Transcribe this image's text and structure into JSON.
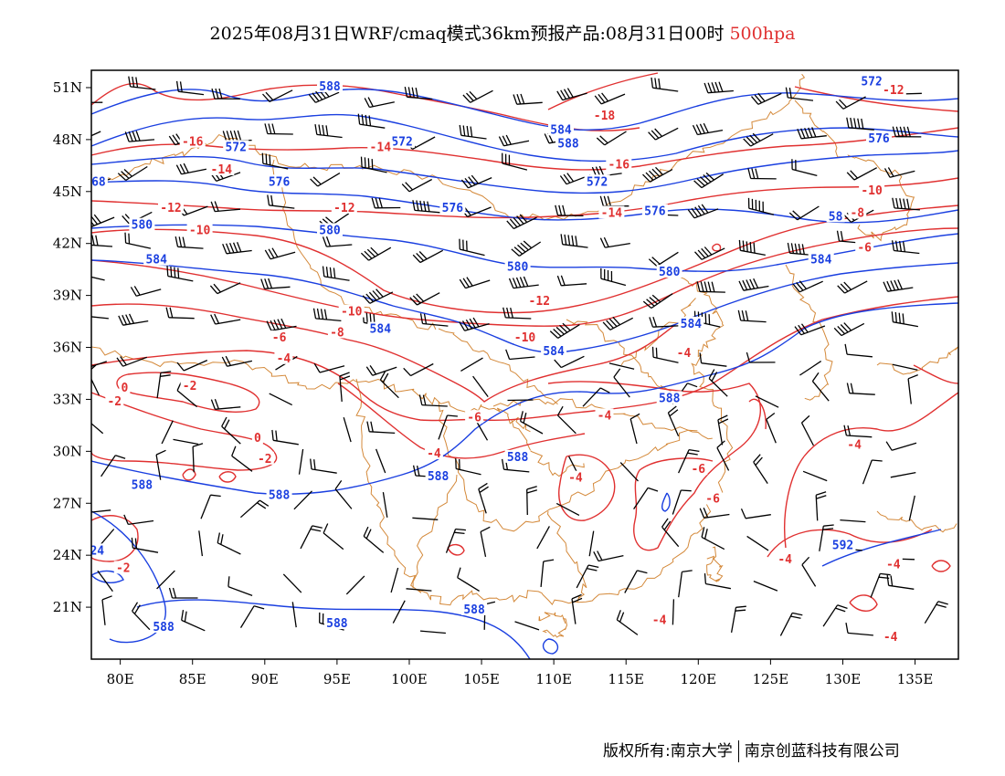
{
  "title": {
    "main": "2025年08月31日WRF/cmaq模式36km预报产品:08月31日00时",
    "level": "500hpa"
  },
  "map": {
    "lon_range": [
      78,
      138
    ],
    "lat_range": [
      18,
      52
    ],
    "lat_ticks": [
      "51N",
      "48N",
      "45N",
      "42N",
      "39N",
      "36N",
      "33N",
      "30N",
      "27N",
      "24N",
      "21N"
    ],
    "lat_tick_values": [
      51,
      48,
      45,
      42,
      39,
      36,
      33,
      30,
      27,
      24,
      21
    ],
    "lon_ticks": [
      "80E",
      "85E",
      "90E",
      "95E",
      "100E",
      "105E",
      "110E",
      "115E",
      "120E",
      "125E",
      "130E",
      "135E"
    ],
    "lon_tick_values": [
      80,
      85,
      90,
      95,
      100,
      105,
      110,
      115,
      120,
      125,
      130,
      135
    ]
  },
  "colors": {
    "height_contour": "#1a3fe0",
    "temperature_contour": "#e03030",
    "boundary": "#d4893a",
    "wind_barb": "#000000",
    "frame": "#000000"
  },
  "height_labels": [
    {
      "text": "588",
      "lon": 94.5,
      "lat": 51
    },
    {
      "text": "584",
      "lon": 110.5,
      "lat": 48.5
    },
    {
      "text": "588",
      "lon": 111,
      "lat": 47.7
    },
    {
      "text": "572",
      "lon": 132,
      "lat": 51.3
    },
    {
      "text": "576",
      "lon": 132.5,
      "lat": 48
    },
    {
      "text": "572",
      "lon": 88,
      "lat": 47.5
    },
    {
      "text": "572",
      "lon": 99.5,
      "lat": 47.8
    },
    {
      "text": "576",
      "lon": 91,
      "lat": 45.5
    },
    {
      "text": "576",
      "lon": 103,
      "lat": 44
    },
    {
      "text": "572",
      "lon": 113,
      "lat": 45.5
    },
    {
      "text": "576",
      "lon": 117,
      "lat": 43.8
    },
    {
      "text": "68",
      "lon": 78.5,
      "lat": 45.5
    },
    {
      "text": "580",
      "lon": 81.5,
      "lat": 43
    },
    {
      "text": "580",
      "lon": 94.5,
      "lat": 42.7
    },
    {
      "text": "584",
      "lon": 82.5,
      "lat": 41
    },
    {
      "text": "580",
      "lon": 107.5,
      "lat": 40.6
    },
    {
      "text": "580",
      "lon": 118,
      "lat": 40.3
    },
    {
      "text": "58",
      "lon": 129.5,
      "lat": 43.5
    },
    {
      "text": "584",
      "lon": 128.5,
      "lat": 41
    },
    {
      "text": "584",
      "lon": 98,
      "lat": 37
    },
    {
      "text": "584",
      "lon": 119.5,
      "lat": 37.3
    },
    {
      "text": "584",
      "lon": 110,
      "lat": 35.7
    },
    {
      "text": "588",
      "lon": 118,
      "lat": 33
    },
    {
      "text": "588",
      "lon": 107.5,
      "lat": 29.6
    },
    {
      "text": "588",
      "lon": 81.5,
      "lat": 28
    },
    {
      "text": "588",
      "lon": 102,
      "lat": 28.5
    },
    {
      "text": "588",
      "lon": 91,
      "lat": 27.4
    },
    {
      "text": "24",
      "lon": 78.4,
      "lat": 24.2
    },
    {
      "text": "592",
      "lon": 130,
      "lat": 24.5
    },
    {
      "text": "588",
      "lon": 104.5,
      "lat": 20.8
    },
    {
      "text": "588",
      "lon": 95,
      "lat": 20
    },
    {
      "text": "588",
      "lon": 83,
      "lat": 19.8
    }
  ],
  "temperature_labels": [
    {
      "text": "-18",
      "lon": 113.5,
      "lat": 49.3
    },
    {
      "text": "-12",
      "lon": 133.5,
      "lat": 50.8
    },
    {
      "text": "-16",
      "lon": 85,
      "lat": 47.8
    },
    {
      "text": "-14",
      "lon": 98,
      "lat": 47.5
    },
    {
      "text": "-16",
      "lon": 114.5,
      "lat": 46.5
    },
    {
      "text": "-14",
      "lon": 87,
      "lat": 46.2
    },
    {
      "text": "-12",
      "lon": 83.5,
      "lat": 44
    },
    {
      "text": "-12",
      "lon": 95.5,
      "lat": 44
    },
    {
      "text": "-14",
      "lon": 114,
      "lat": 43.7
    },
    {
      "text": "-10",
      "lon": 132,
      "lat": 45
    },
    {
      "text": "-8",
      "lon": 131,
      "lat": 43.7
    },
    {
      "text": "-10",
      "lon": 85.5,
      "lat": 42.7
    },
    {
      "text": "-6",
      "lon": 131.5,
      "lat": 41.7
    },
    {
      "text": "-12",
      "lon": 109,
      "lat": 38.6
    },
    {
      "text": "-10",
      "lon": 96,
      "lat": 38
    },
    {
      "text": "-8",
      "lon": 95,
      "lat": 36.8
    },
    {
      "text": "-10",
      "lon": 108,
      "lat": 36.5
    },
    {
      "text": "-6",
      "lon": 91,
      "lat": 36.5
    },
    {
      "text": "-4",
      "lon": 91.3,
      "lat": 35.3
    },
    {
      "text": "-4",
      "lon": 119,
      "lat": 35.6
    },
    {
      "text": "-2",
      "lon": 84.8,
      "lat": 33.7
    },
    {
      "text": "0",
      "lon": 80.3,
      "lat": 33.6
    },
    {
      "text": "-2",
      "lon": 79.6,
      "lat": 32.8
    },
    {
      "text": "-4",
      "lon": 113.5,
      "lat": 32
    },
    {
      "text": "-6",
      "lon": 104.5,
      "lat": 31.9
    },
    {
      "text": "0",
      "lon": 89.5,
      "lat": 30.7
    },
    {
      "text": "-2",
      "lon": 90,
      "lat": 29.5
    },
    {
      "text": "-4",
      "lon": 101.7,
      "lat": 29.8
    },
    {
      "text": "-4",
      "lon": 130.8,
      "lat": 30.3
    },
    {
      "text": "-6",
      "lon": 120,
      "lat": 28.9
    },
    {
      "text": "-4",
      "lon": 111.5,
      "lat": 28.4
    },
    {
      "text": "-6",
      "lon": 121,
      "lat": 27.2
    },
    {
      "text": "-4",
      "lon": 126,
      "lat": 23.7
    },
    {
      "text": "-4",
      "lon": 133.5,
      "lat": 23.4
    },
    {
      "text": "-2",
      "lon": 80.2,
      "lat": 23.2
    },
    {
      "text": "-4",
      "lon": 117.3,
      "lat": 20.2
    },
    {
      "text": "-4",
      "lon": 133.3,
      "lat": 19.2
    }
  ],
  "copyright": {
    "owner": "版权所有:南京大学",
    "partner": "南京创蓝科技有限公司"
  }
}
